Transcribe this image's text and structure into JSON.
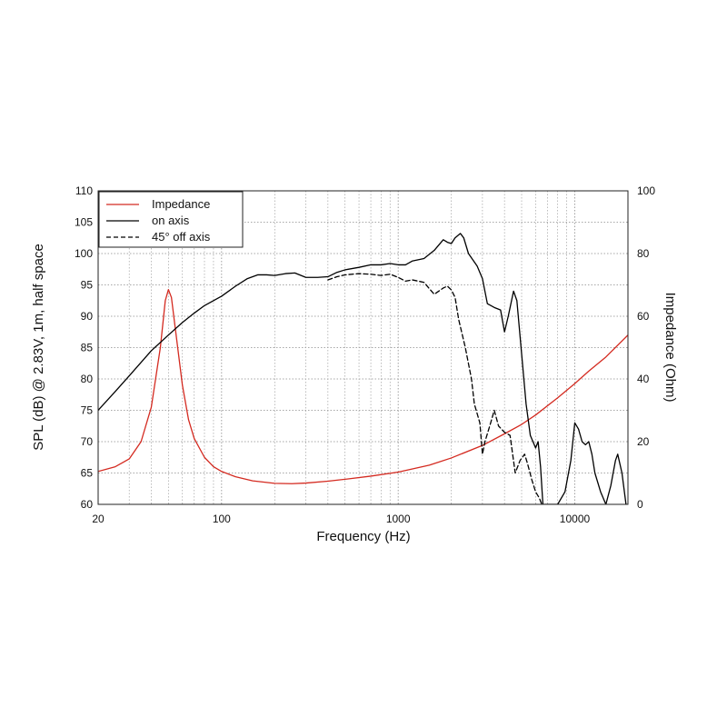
{
  "chart_data": {
    "type": "line",
    "xlabel": "Frequency (Hz)",
    "ylabel_left": "SPL (dB) @ 2.83V, 1m, half space",
    "ylabel_right": "Impedance (Ohm)",
    "x_scale": "log",
    "xlim": [
      20,
      20000
    ],
    "ylim_left": [
      60,
      110
    ],
    "ylim_right": [
      0,
      100
    ],
    "x_tick_labels": [
      "20",
      "100",
      "1000",
      "10000"
    ],
    "y_left_tick_labels": [
      "60",
      "65",
      "70",
      "75",
      "80",
      "85",
      "90",
      "95",
      "100",
      "105",
      "110"
    ],
    "y_right_tick_labels": [
      "0",
      "20",
      "40",
      "60",
      "80",
      "100"
    ],
    "grid": true,
    "legend_position": "top-left",
    "series": [
      {
        "name": "Impedance",
        "axis": "right",
        "color": "#d42a20",
        "dash": "solid",
        "points": [
          [
            20,
            10.5
          ],
          [
            25,
            12
          ],
          [
            30,
            14.5
          ],
          [
            35,
            20
          ],
          [
            40,
            31
          ],
          [
            45,
            50
          ],
          [
            48,
            65
          ],
          [
            50,
            68.5
          ],
          [
            52,
            66
          ],
          [
            55,
            55
          ],
          [
            60,
            38
          ],
          [
            65,
            27
          ],
          [
            70,
            21
          ],
          [
            80,
            15
          ],
          [
            90,
            12
          ],
          [
            100,
            10.5
          ],
          [
            120,
            8.8
          ],
          [
            150,
            7.5
          ],
          [
            200,
            6.7
          ],
          [
            250,
            6.6
          ],
          [
            300,
            6.8
          ],
          [
            400,
            7.4
          ],
          [
            500,
            8
          ],
          [
            700,
            9
          ],
          [
            1000,
            10.3
          ],
          [
            1500,
            12.5
          ],
          [
            2000,
            14.8
          ],
          [
            3000,
            18.8
          ],
          [
            4000,
            22.5
          ],
          [
            5000,
            25.5
          ],
          [
            6000,
            28.5
          ],
          [
            8000,
            34
          ],
          [
            10000,
            38.5
          ],
          [
            12000,
            42.5
          ],
          [
            15000,
            47
          ],
          [
            20000,
            54
          ]
        ]
      },
      {
        "name": "on axis",
        "axis": "left",
        "color": "#000000",
        "dash": "solid",
        "points": [
          [
            20,
            75
          ],
          [
            25,
            78
          ],
          [
            30,
            80.5
          ],
          [
            40,
            84.5
          ],
          [
            50,
            87
          ],
          [
            60,
            89
          ],
          [
            70,
            90.5
          ],
          [
            80,
            91.7
          ],
          [
            100,
            93.2
          ],
          [
            120,
            94.8
          ],
          [
            140,
            96
          ],
          [
            160,
            96.6
          ],
          [
            180,
            96.6
          ],
          [
            200,
            96.5
          ],
          [
            230,
            96.8
          ],
          [
            260,
            96.9
          ],
          [
            300,
            96.2
          ],
          [
            350,
            96.2
          ],
          [
            400,
            96.3
          ],
          [
            450,
            97
          ],
          [
            500,
            97.4
          ],
          [
            600,
            97.8
          ],
          [
            700,
            98.2
          ],
          [
            800,
            98.2
          ],
          [
            900,
            98.4
          ],
          [
            1000,
            98.2
          ],
          [
            1100,
            98.2
          ],
          [
            1200,
            98.8
          ],
          [
            1400,
            99.2
          ],
          [
            1600,
            100.5
          ],
          [
            1800,
            102.2
          ],
          [
            1900,
            101.8
          ],
          [
            2000,
            101.6
          ],
          [
            2100,
            102.5
          ],
          [
            2250,
            103.2
          ],
          [
            2350,
            102.5
          ],
          [
            2500,
            100
          ],
          [
            2800,
            98
          ],
          [
            3000,
            96
          ],
          [
            3200,
            92
          ],
          [
            3500,
            91.4
          ],
          [
            3800,
            91
          ],
          [
            4000,
            87.5
          ],
          [
            4200,
            90
          ],
          [
            4500,
            94
          ],
          [
            4700,
            92.5
          ],
          [
            5000,
            84
          ],
          [
            5300,
            76
          ],
          [
            5600,
            71
          ],
          [
            6000,
            69
          ],
          [
            6200,
            70
          ],
          [
            6400,
            66
          ],
          [
            6600,
            60
          ],
          [
            7000,
            60
          ],
          [
            8000,
            60
          ],
          [
            8800,
            62
          ],
          [
            9500,
            67
          ],
          [
            10000,
            73
          ],
          [
            10500,
            72
          ],
          [
            11000,
            70
          ],
          [
            11500,
            69.5
          ],
          [
            12000,
            70
          ],
          [
            12500,
            68
          ],
          [
            13000,
            65
          ],
          [
            14000,
            62
          ],
          [
            15000,
            60
          ],
          [
            16000,
            63
          ],
          [
            17000,
            67
          ],
          [
            17500,
            68
          ],
          [
            18500,
            65
          ],
          [
            19500,
            60
          ]
        ]
      },
      {
        "name": "45° off axis",
        "axis": "left",
        "color": "#000000",
        "dash": "dashed",
        "points": [
          [
            400,
            95.8
          ],
          [
            450,
            96.3
          ],
          [
            500,
            96.6
          ],
          [
            600,
            96.8
          ],
          [
            700,
            96.7
          ],
          [
            800,
            96.5
          ],
          [
            900,
            96.7
          ],
          [
            1000,
            96.2
          ],
          [
            1100,
            95.6
          ],
          [
            1200,
            95.8
          ],
          [
            1300,
            95.6
          ],
          [
            1400,
            95.4
          ],
          [
            1600,
            93.5
          ],
          [
            1800,
            94.5
          ],
          [
            1900,
            94.8
          ],
          [
            2000,
            94.2
          ],
          [
            2100,
            93
          ],
          [
            2200,
            89.5
          ],
          [
            2400,
            85
          ],
          [
            2600,
            80
          ],
          [
            2700,
            76
          ],
          [
            2900,
            73
          ],
          [
            3000,
            68
          ],
          [
            3100,
            70
          ],
          [
            3300,
            72.5
          ],
          [
            3500,
            75
          ],
          [
            3700,
            72.5
          ],
          [
            4000,
            71.5
          ],
          [
            4300,
            71
          ],
          [
            4600,
            65
          ],
          [
            4900,
            67
          ],
          [
            5200,
            68
          ],
          [
            5400,
            66.5
          ],
          [
            5700,
            64
          ],
          [
            6000,
            62
          ],
          [
            6300,
            61
          ],
          [
            6500,
            60
          ]
        ]
      }
    ]
  }
}
